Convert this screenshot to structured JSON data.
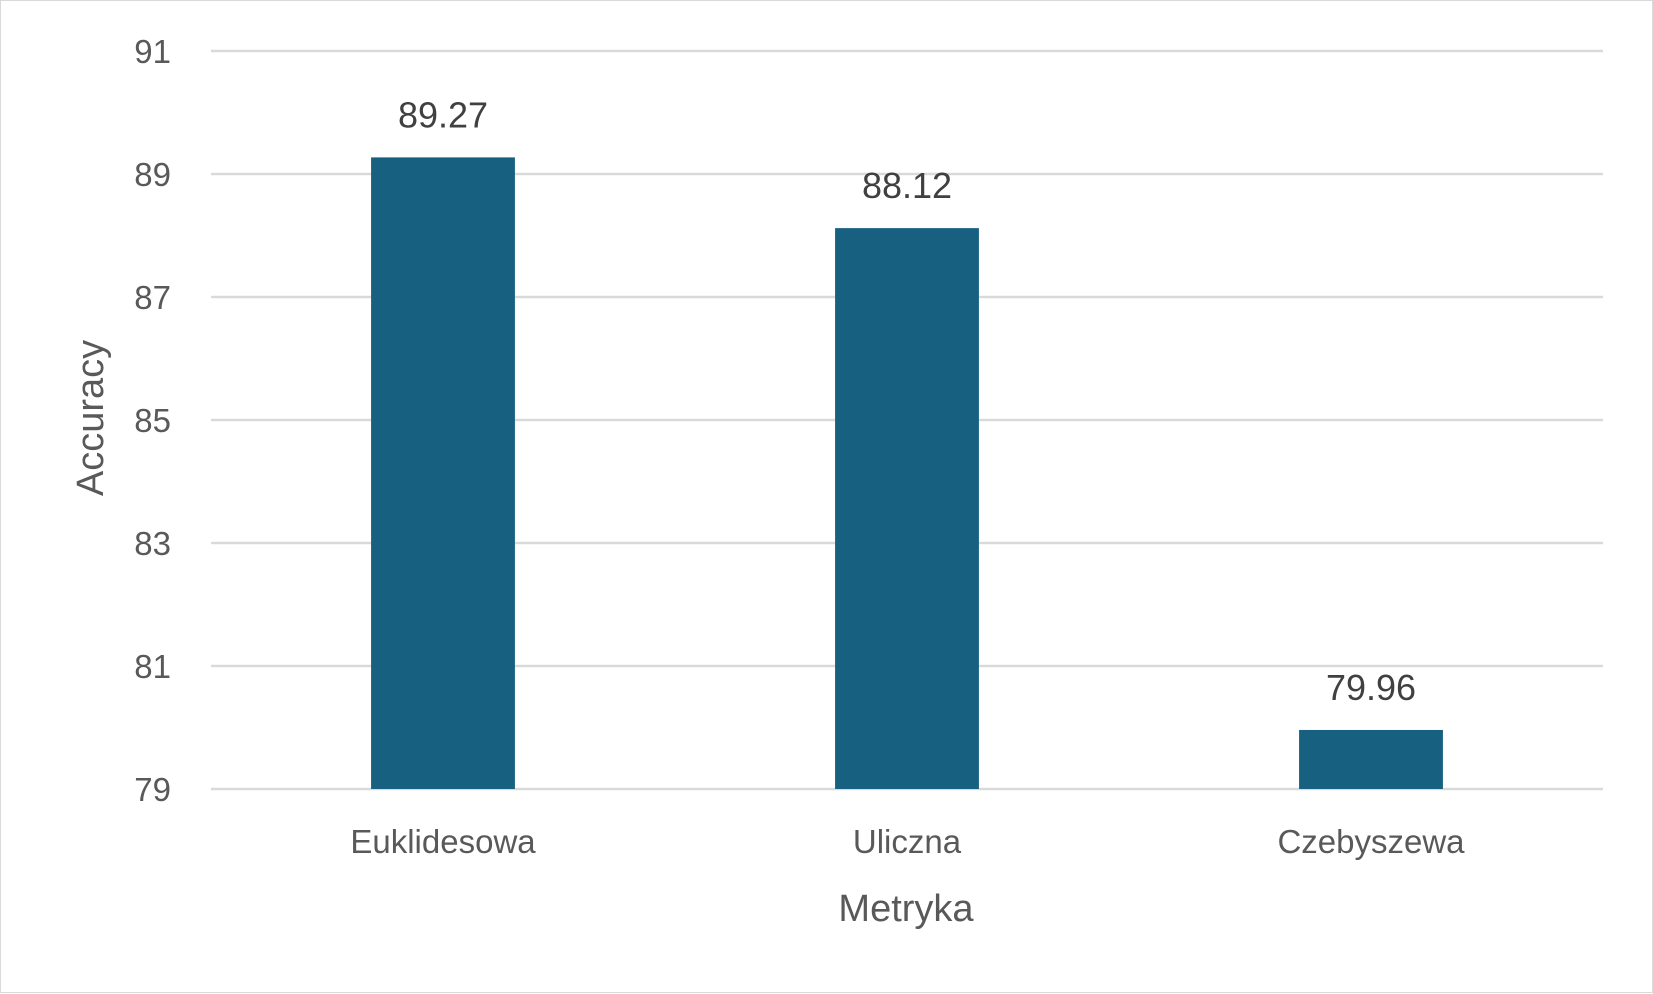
{
  "chart_data": {
    "type": "bar",
    "categories": [
      "Euklidesowa",
      "Uliczna",
      "Czebyszewa"
    ],
    "values": [
      89.27,
      88.12,
      79.96
    ],
    "value_labels": [
      "89.27",
      "88.12",
      "79.96"
    ],
    "title": "",
    "xlabel": "Metryka",
    "ylabel": "Accuracy",
    "ylim": [
      79,
      91
    ],
    "yticks": [
      79,
      81,
      83,
      85,
      87,
      89,
      91
    ],
    "grid": true,
    "legend": "none",
    "bar_color": "#17607f"
  }
}
